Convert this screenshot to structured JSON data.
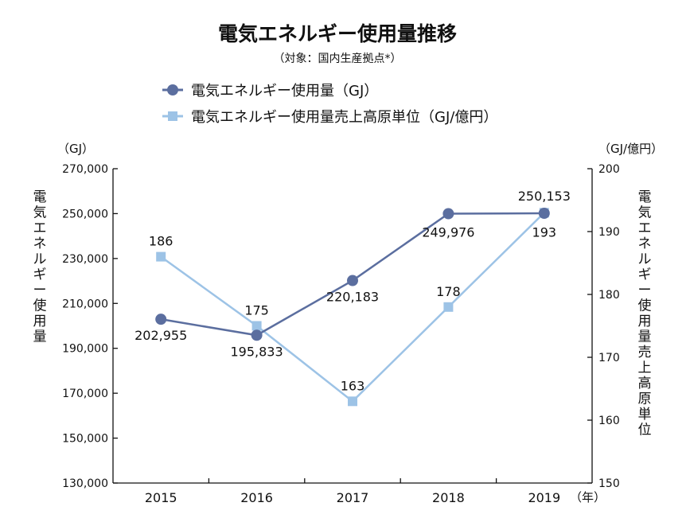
{
  "chart_data": {
    "type": "line",
    "title": "電気エネルギー使用量推移",
    "subtitle": "（対象：国内生産拠点*）",
    "categories": [
      "2015",
      "2016",
      "2017",
      "2018",
      "2019"
    ],
    "x_unit": "（年）",
    "left_axis": {
      "unit": "（GJ）",
      "label": "電気エネルギー使用量",
      "ylim": [
        130000,
        270000
      ],
      "ticks": [
        130000,
        150000,
        170000,
        190000,
        210000,
        230000,
        250000,
        270000
      ],
      "tick_labels": [
        "130,000",
        "150,000",
        "170,000",
        "190,000",
        "210,000",
        "230,000",
        "250,000",
        "270,000"
      ]
    },
    "right_axis": {
      "unit": "（GJ/億円）",
      "label": "電気エネルギー使用量売上高原単位",
      "ylim": [
        150,
        200
      ],
      "ticks": [
        150,
        160,
        170,
        180,
        190,
        200
      ],
      "tick_labels": [
        "150",
        "160",
        "170",
        "180",
        "190",
        "200"
      ]
    },
    "grid": false,
    "legend_position": "top",
    "series": [
      {
        "name": "電気エネルギー使用量（GJ）",
        "axis": "left",
        "marker": "circle",
        "color": "#5b6e9f",
        "values": [
          202955,
          195833,
          220183,
          249976,
          250153
        ],
        "labels": [
          "202,955",
          "195,833",
          "220,183",
          "249,976",
          "250,153"
        ]
      },
      {
        "name": "電気エネルギー使用量売上高原単位（GJ/億円）",
        "axis": "right",
        "marker": "square",
        "color": "#9dc3e6",
        "values": [
          186,
          175,
          163,
          178,
          193
        ],
        "labels": [
          "186",
          "175",
          "163",
          "178",
          "193"
        ]
      }
    ]
  }
}
